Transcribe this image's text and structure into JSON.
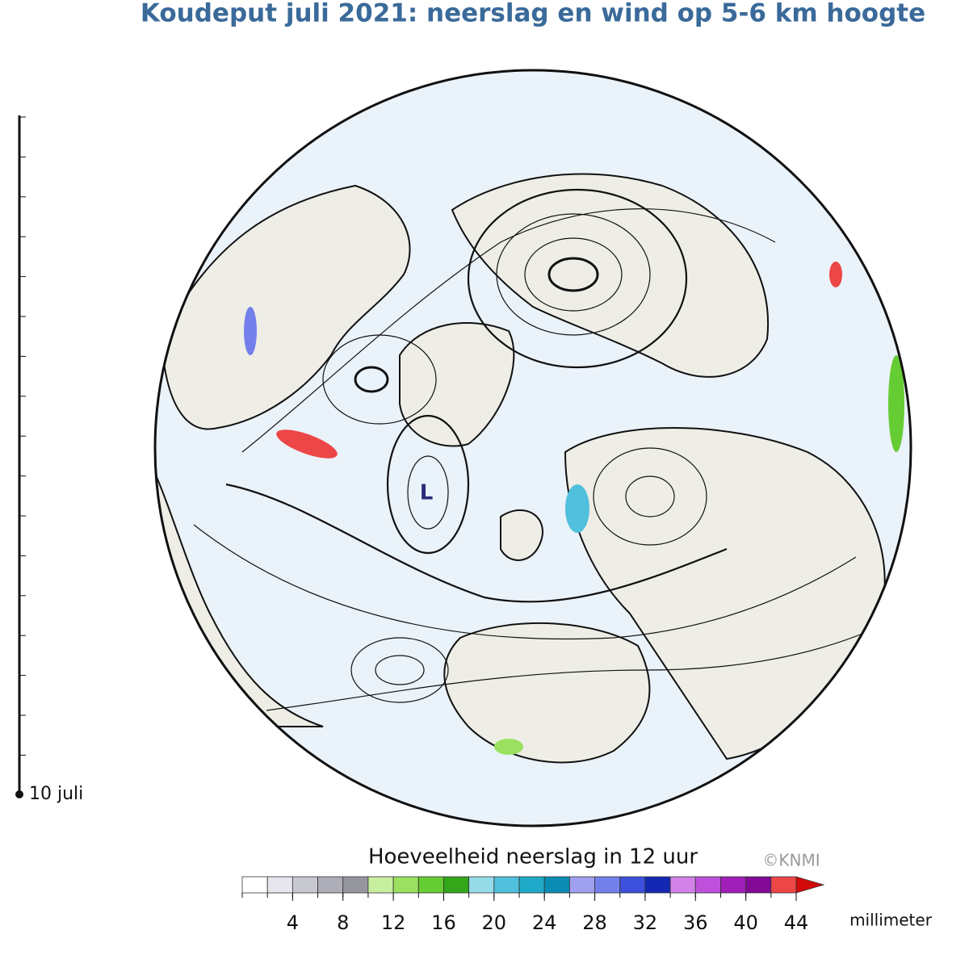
{
  "title": "Koudeput juli 2021: neerslag en wind op 5-6 km hoogte",
  "timeline": {
    "label": "10 juli"
  },
  "map": {
    "low_label": "L"
  },
  "colorbar": {
    "title": "Hoeveelheid neerslag in 12 uur",
    "credit": "©KNMI",
    "unit": "millimeter",
    "lim": [
      0,
      44
    ],
    "ticks": [
      4,
      8,
      12,
      16,
      20,
      24,
      28,
      32,
      36,
      40,
      44
    ],
    "colors": [
      "#ffffff",
      "#e6e6ec",
      "#c8c8d0",
      "#aeaeb8",
      "#96969f",
      "#c8eea0",
      "#9be060",
      "#66cc33",
      "#33a61a",
      "#96dbe8",
      "#50c0dc",
      "#1eaac8",
      "#0a8cb4",
      "#a0a0f0",
      "#7380ec",
      "#3c50dc",
      "#1428b4",
      "#d282e6",
      "#be50dc",
      "#a01eb9",
      "#820a96",
      "#ec4646"
    ],
    "extend_color": "#d20a0a"
  }
}
